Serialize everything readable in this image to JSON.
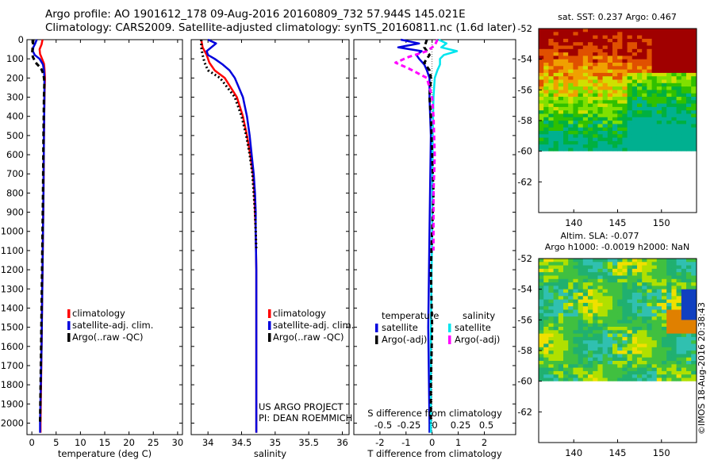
{
  "header": {
    "title_line1": "Argo profile: AO 1901612_178 09-Aug-2016 20160809_732 57.944S 145.021E",
    "title_line2": "Climatology: CARS2009. Satellite-adjusted climatology: synTS_20160811.nc (1.6d later)"
  },
  "chart_data": [
    {
      "type": "line",
      "name": "temperature-profile",
      "xlabel": "temperature (deg C)",
      "xlim": [
        -1,
        31
      ],
      "ylim": [
        2060,
        0
      ],
      "xticks": [
        0,
        5,
        10,
        15,
        20,
        25,
        30
      ],
      "yticks": [
        0,
        100,
        200,
        300,
        400,
        500,
        600,
        700,
        800,
        900,
        1000,
        1100,
        1200,
        1300,
        1400,
        1500,
        1600,
        1700,
        1800,
        1900,
        2000
      ],
      "legend": {
        "placement": "lower-right",
        "items": [
          "climatology",
          "satellite-adj. clim.",
          "Argo(..raw -QC)"
        ]
      },
      "series": [
        {
          "name": "climatology",
          "color": "#ff0000",
          "depth": [
            0,
            25,
            50,
            75,
            100,
            125,
            150,
            200,
            300,
            500,
            800,
            1200,
            1600,
            2000,
            2050
          ],
          "values": [
            2.2,
            2.0,
            1.6,
            1.7,
            2.1,
            2.5,
            2.6,
            2.7,
            2.6,
            2.5,
            2.4,
            2.2,
            2.0,
            1.8,
            1.8
          ]
        },
        {
          "name": "satellite-adj. clim.",
          "color": "#0000dd",
          "depth": [
            0,
            20,
            40,
            60,
            80,
            100,
            130,
            160,
            200,
            300,
            500,
            800,
            1200,
            1600,
            2000,
            2050
          ],
          "values": [
            1.0,
            0.7,
            0.3,
            0.2,
            0.6,
            1.6,
            2.3,
            2.5,
            2.6,
            2.6,
            2.5,
            2.4,
            2.2,
            2.0,
            1.7,
            1.7
          ]
        },
        {
          "name": "Argo(..raw -QC)",
          "color": "#000000",
          "depth": [
            0,
            30,
            60,
            90,
            120,
            150,
            180,
            220,
            300,
            500,
            800,
            1200,
            1600,
            2000
          ],
          "values": [
            0.3,
            0.2,
            0.1,
            0.2,
            0.8,
            1.9,
            2.4,
            2.6,
            2.5,
            2.4,
            2.3,
            2.1,
            1.9,
            1.7
          ]
        }
      ]
    },
    {
      "type": "line",
      "name": "salinity-profile",
      "xlabel": "salinity",
      "xlim": [
        33.75,
        36.1
      ],
      "ylim": [
        2060,
        0
      ],
      "xticks": [
        34,
        34.5,
        35,
        35.5,
        36
      ],
      "legend": {
        "placement": "lower-right",
        "items": [
          "climatology",
          "satellite-adj. clim.",
          "Argo(..raw -QC)"
        ]
      },
      "annotation": [
        "US ARGO PROJECT",
        "PI: DEAN ROEMMICH"
      ],
      "series": [
        {
          "name": "climatology",
          "color": "#ff0000",
          "depth": [
            0,
            40,
            80,
            120,
            160,
            200,
            300,
            400,
            500,
            600,
            700,
            800,
            900,
            1000,
            1200,
            1500,
            2000,
            2050
          ],
          "values": [
            33.9,
            33.92,
            33.98,
            34.02,
            34.1,
            34.25,
            34.43,
            34.52,
            34.58,
            34.63,
            34.67,
            34.69,
            34.7,
            34.71,
            34.72,
            34.72,
            34.72,
            34.72
          ]
        },
        {
          "name": "satellite-adj. clim.",
          "color": "#0000dd",
          "depth": [
            0,
            20,
            40,
            60,
            80,
            100,
            130,
            160,
            200,
            300,
            400,
            500,
            600,
            700,
            800,
            900,
            1000,
            1200,
            1500,
            2000,
            2050
          ],
          "values": [
            34.0,
            34.12,
            34.05,
            33.98,
            34.0,
            34.1,
            34.22,
            34.32,
            34.4,
            34.52,
            34.58,
            34.62,
            34.65,
            34.68,
            34.7,
            34.71,
            34.71,
            34.72,
            34.72,
            34.72,
            34.72
          ]
        },
        {
          "name": "Argo(..raw -QC)",
          "color": "#000000",
          "depth": [
            0,
            40,
            80,
            120,
            160,
            200,
            300,
            400,
            500,
            600,
            700,
            800,
            900,
            1000,
            1100
          ],
          "values": [
            33.9,
            33.9,
            33.92,
            33.95,
            34.0,
            34.18,
            34.4,
            34.5,
            34.57,
            34.62,
            34.66,
            34.68,
            34.7,
            34.71,
            34.72
          ]
        }
      ]
    },
    {
      "type": "line",
      "name": "difference-profile",
      "xlabel": "T difference from climatology",
      "top_axis_label": "S difference from climatology",
      "xlim": [
        -3,
        3.2
      ],
      "ylim": [
        2060,
        0
      ],
      "xticks": [
        -2,
        -1,
        0,
        1,
        2
      ],
      "top_ticks": [
        "-0.5",
        "-0.25",
        "0",
        "0.25",
        "0.5"
      ],
      "top_tick_values": [
        -0.5,
        -0.25,
        0,
        0.25,
        0.5
      ],
      "legend": {
        "placement": "lower-center",
        "groups": [
          {
            "title": "temperature",
            "items": [
              "satellite",
              "Argo(-adj)"
            ]
          },
          {
            "title": "salinity",
            "items": [
              "satellite",
              "Argo(-adj)"
            ]
          }
        ]
      },
      "series": [
        {
          "name": "temperature satellite",
          "color": "#0000dd",
          "depth": [
            0,
            20,
            40,
            60,
            80,
            100,
            130,
            160,
            200,
            300,
            500,
            1000,
            1500,
            2000,
            2050
          ],
          "values": [
            -1.2,
            -0.5,
            -1.3,
            -0.4,
            -0.6,
            -0.5,
            -0.3,
            -0.2,
            -0.1,
            -0.1,
            -0.05,
            -0.1,
            -0.15,
            -0.1,
            -0.1
          ]
        },
        {
          "name": "salinity satellite",
          "color": "#00e5ee",
          "depth": [
            0,
            20,
            40,
            60,
            80,
            100,
            130,
            160,
            200,
            300,
            500,
            1000,
            1500,
            2000,
            2050
          ],
          "values": [
            0.25,
            0.55,
            0.35,
            0.95,
            0.45,
            0.3,
            0.3,
            0.2,
            0.1,
            0.05,
            0.02,
            0.0,
            -0.05,
            -0.05,
            -0.05
          ]
        },
        {
          "name": "temperature Argo(-adj)",
          "color": "#000000",
          "depth": [
            0,
            40,
            80,
            120,
            160,
            200,
            300,
            400,
            600,
            800,
            1000,
            1200,
            1500,
            1800,
            2000
          ],
          "values": [
            -0.2,
            -0.3,
            -0.1,
            -0.3,
            -0.1,
            -0.05,
            -0.1,
            -0.05,
            0.0,
            0.05,
            0.0,
            -0.05,
            0.0,
            -0.05,
            -0.05
          ]
        },
        {
          "name": "salinity Argo(-adj)",
          "color": "#ff00ff",
          "depth": [
            0,
            30,
            60,
            90,
            120,
            150,
            200,
            300,
            400,
            600,
            800,
            1000,
            1100
          ],
          "values": [
            0.2,
            0.1,
            -0.2,
            -0.9,
            -1.4,
            -0.9,
            -0.2,
            0.0,
            0.05,
            0.1,
            0.05,
            0.05,
            0.05
          ]
        }
      ]
    },
    {
      "type": "heatmap",
      "name": "sst-map",
      "title": "sat. SST: 0.237 Argo: 0.467",
      "xlim": [
        136,
        154
      ],
      "ylim": [
        -64,
        -52
      ],
      "xticks": [
        140,
        145,
        150
      ],
      "yticks": [
        -52,
        -54,
        -56,
        -58,
        -60,
        -62
      ],
      "data_extent_lat": [
        -60,
        -52
      ]
    },
    {
      "type": "heatmap",
      "name": "sla-map",
      "title_line1": "Altim. SLA: -0.077",
      "title_line2": "Argo h1000: -0.0019 h2000: NaN",
      "xlim": [
        136,
        154
      ],
      "ylim": [
        -64,
        -52
      ],
      "xticks": [
        140,
        145,
        150
      ],
      "yticks": [
        -52,
        -54,
        -56,
        -58,
        -60,
        -62
      ],
      "data_extent_lat": [
        -60,
        -52
      ]
    }
  ],
  "footer": {
    "credit": "©IMOS 18-Aug-2016 20:38:43"
  }
}
